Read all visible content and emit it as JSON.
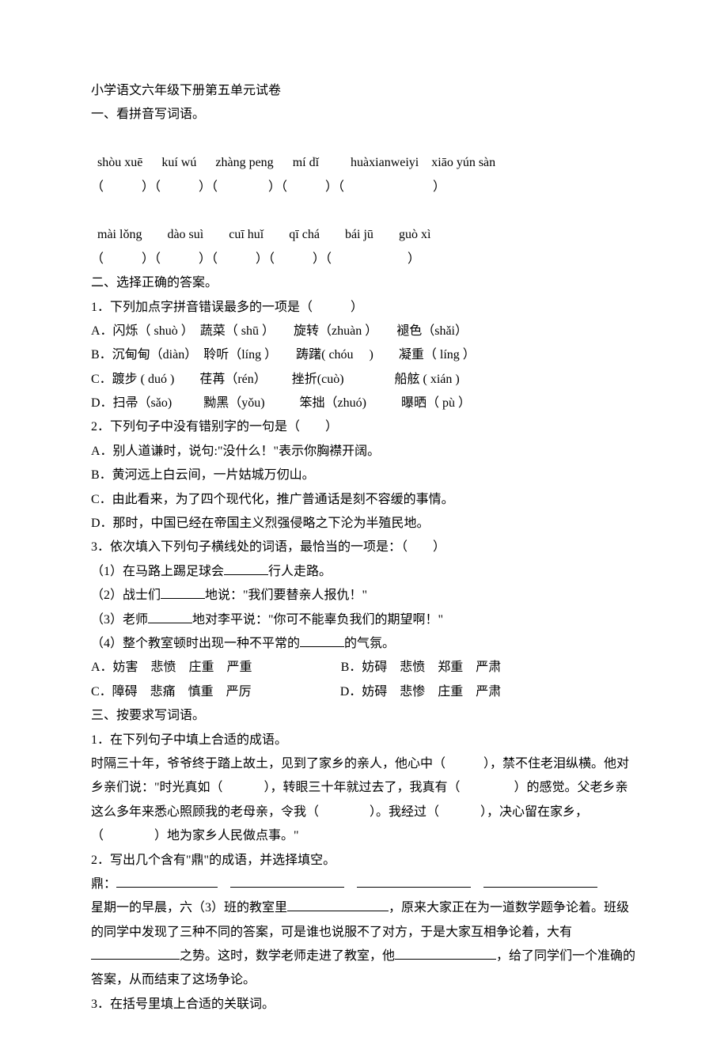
{
  "title": "小学语文六年级下册第五单元试卷",
  "section1_heading": "一、看拼音写词语。",
  "pinyin_row1": {
    "p1": "shòu xuē",
    "p2": "kuí wú",
    "p3": "zhàng peng",
    "p4": "mí dǐ",
    "p5": "huàxianweiyi",
    "p6": "xiāo yún sàn"
  },
  "pinyin_row2": {
    "p1": "mài lǒng",
    "p2": "dào suì",
    "p3": "cuī huǐ",
    "p4": "qī chá",
    "p5": "bái jū",
    "p6": "guò xì"
  },
  "section2_heading": "二、选择正确的答案。",
  "q2_1": {
    "stem": "1．下列加点字拼音错误最多的一项是（　　　）",
    "a": "A．闪烁（ shuò ）　蔬菜（ shū ）　　旋转（zhuàn ）　　褪色（shǎi）",
    "b": "B．沉甸甸（diàn）　聆听（líng ）　　踌躇( chóu 　)　　凝重（ líng ）",
    "c": "C．踱步 ( duó )　　荏苒（rén）　 　 挫折(cuò)　　　　船舷 ( xián )",
    "d": "D．扫帚（sǎo)　 　 黝黑（yǒu) 　 　 笨拙（zhuó)　 　  曝晒（ pù ）"
  },
  "q2_2": {
    "stem": "2．下列句子中没有错别字的一句是（　　）",
    "a": "A．别人道谦时，说句:\"没什么！\"表示你胸襟开阔。",
    "b": "B．黄河远上白云间，一片姑城万仞山。",
    "c": "C．由此看来，为了四个现代化，推广普通话是刻不容缓的事情。",
    "d": "D．那时，中国已经在帝国主义烈强侵略之下沦为半殖民地。"
  },
  "q2_3": {
    "stem": "3．依次填入下列句子横线处的词语，最恰当的一项是：（　　）",
    "l1a": "（1）在马路上踢足球会",
    "l1b": "行人走路。",
    "l2a": "（2）战士们",
    "l2b": "地说：\"我们要替亲人报仇！\"",
    "l3a": "（3）老师",
    "l3b": "地对李平说：\"你可不能辜负我们的期望啊！\"",
    "l4a": "（4）整个教室顿时出现一种不平常的",
    "l4b": "的气氛。",
    "a": "A．妨害　悲愤　庄重　严重",
    "b": "B．妨碍　悲愤　郑重　严肃",
    "c": "C．障碍　悲痛　慎重　严厉",
    "d": "D．妨碍　悲惨　庄重　严肃"
  },
  "section3_heading": "三、按要求写词语。",
  "q3_1": {
    "stem": "1．在下列句子中填上合适的成语。",
    "p1": "时隔三十年，爷爷终于踏上故土，见到了家乡的亲人，他心中（　　　），禁不住老泪纵横。他对乡亲们说：\"时光真如（　　　 ），转眼三十年就过去了，我真有（ 　　　　）的感觉。父老乡亲这么多年来悉心照顾我的老母亲，令我（　　　　）。我经过（　　　 ），决心留在家乡，（　　　　）地为家乡人民做点事。\""
  },
  "q3_2": {
    "stem": "2．写出几个含有\"鼎\"的成语，并选择填空。",
    "ding_label": "鼎：",
    "para2a": "星期一的早晨，六（3）班的教室里",
    "para2b": "，原来大家正在为一道数学题争论着。班级的同学中发现了三种不同的答案，可是谁也说服不了对方，于是大家互相争论着，大有",
    "para2c": "之势。这时，数学老师走进了教室，他",
    "para2d": "，给了同学们一个准确的答案，从而结束了这场争论。"
  },
  "q3_3_stem": "3．在括号里填上合适的关联词。"
}
